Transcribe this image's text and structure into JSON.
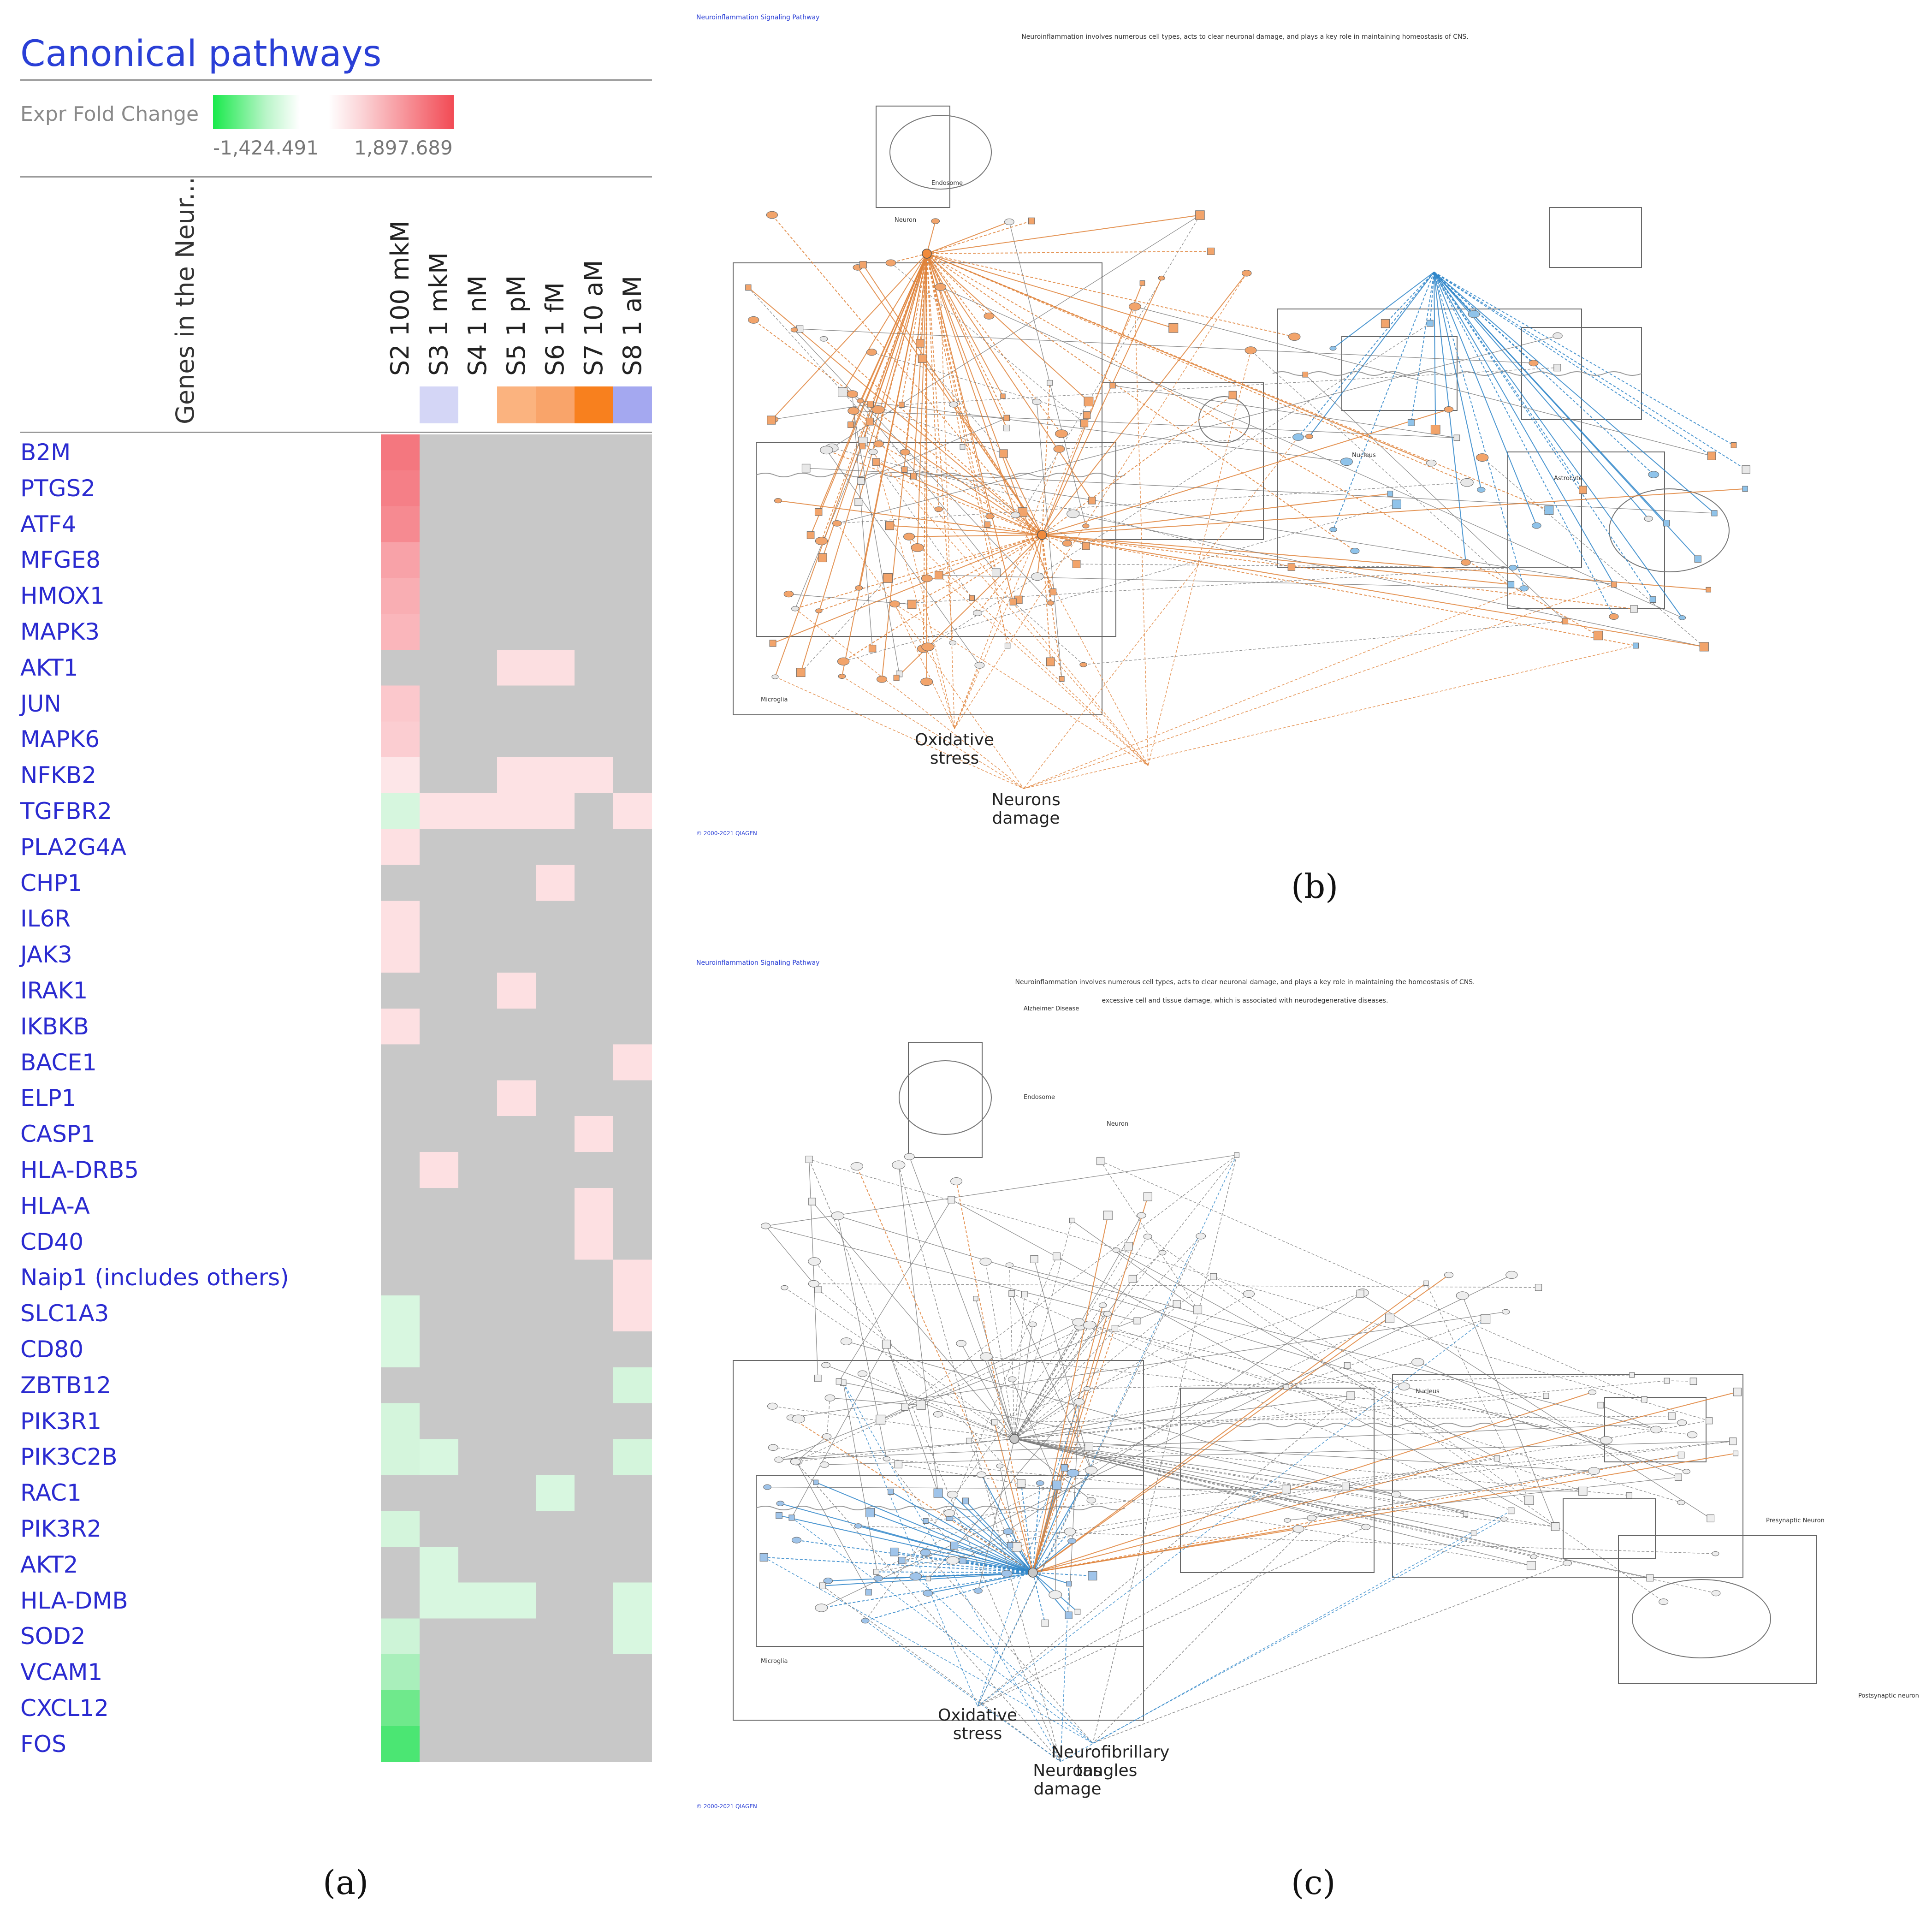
{
  "figure": {
    "labels": {
      "a": "(a)",
      "b": "(b)",
      "c": "(c)"
    }
  },
  "heatmap": {
    "title": "Canonical pathways",
    "legend_label": "Expr Fold Change",
    "legend_min": "-1,424.491",
    "legend_max": "1,897.689",
    "genes_header": "Genes in the Neur...",
    "colors": {
      "gray": "#c8c8c8",
      "header_blank": "#ffffff"
    }
  },
  "chart_data": {
    "type": "heatmap",
    "title": "Canonical pathways",
    "legend": {
      "label": "Expr Fold Change",
      "min": -1424.491,
      "max": 1897.689
    },
    "columns": [
      "S2 100 mkM",
      "S3 1 mkM",
      "S4 1 nM",
      "S5 1 pM",
      "S6 1 fM",
      "S7 10 aM",
      "S8 1 aM"
    ],
    "column_header_colors": [
      "#ffffff",
      "#d4d6f6",
      "#ffffff",
      "#fbb37f",
      "#f9a46a",
      "#f8801e",
      "#a4a8f0"
    ],
    "row_header_title": "Genes in the Neur...",
    "rows": [
      "B2M",
      "PTGS2",
      "ATF4",
      "MFGE8",
      "HMOX1",
      "MAPK3",
      "AKT1",
      "JUN",
      "MAPK6",
      "NFKB2",
      "TGFBR2",
      "PLA2G4A",
      "CHP1",
      "IL6R",
      "JAK3",
      "IRAK1",
      "IKBKB",
      "BACE1",
      "ELP1",
      "CASP1",
      "HLA-DRB5",
      "HLA-A",
      "CD40",
      "Naip1 (includes others)",
      "SLC1A3",
      "CD80",
      "ZBTB12",
      "PIK3R1",
      "PIK3C2B",
      "RAC1",
      "PIK3R2",
      "AKT2",
      "HLA-DMB",
      "SOD2",
      "VCAM1",
      "CXCL12",
      "FOS"
    ],
    "cell_colors": [
      [
        "#f4777f",
        "#c8c8c8",
        "#c8c8c8",
        "#c8c8c8",
        "#c8c8c8",
        "#c8c8c8",
        "#c8c8c8"
      ],
      [
        "#f57f87",
        "#c8c8c8",
        "#c8c8c8",
        "#c8c8c8",
        "#c8c8c8",
        "#c8c8c8",
        "#c8c8c8"
      ],
      [
        "#f68a91",
        "#c8c8c8",
        "#c8c8c8",
        "#c8c8c8",
        "#c8c8c8",
        "#c8c8c8",
        "#c8c8c8"
      ],
      [
        "#f8a2a8",
        "#c8c8c8",
        "#c8c8c8",
        "#c8c8c8",
        "#c8c8c8",
        "#c8c8c8",
        "#c8c8c8"
      ],
      [
        "#f9aeb3",
        "#c8c8c8",
        "#c8c8c8",
        "#c8c8c8",
        "#c8c8c8",
        "#c8c8c8",
        "#c8c8c8"
      ],
      [
        "#fab6bb",
        "#c8c8c8",
        "#c8c8c8",
        "#c8c8c8",
        "#c8c8c8",
        "#c8c8c8",
        "#c8c8c8"
      ],
      [
        "#c8c8c8",
        "#c8c8c8",
        "#c8c8c8",
        "#fcdfe1",
        "#fcdfe1",
        "#c8c8c8",
        "#c8c8c8"
      ],
      [
        "#fbc8cc",
        "#c8c8c8",
        "#c8c8c8",
        "#c8c8c8",
        "#c8c8c8",
        "#c8c8c8",
        "#c8c8c8"
      ],
      [
        "#fbcdd1",
        "#c8c8c8",
        "#c8c8c8",
        "#c8c8c8",
        "#c8c8c8",
        "#c8c8c8",
        "#c8c8c8"
      ],
      [
        "#fde6e8",
        "#c8c8c8",
        "#c8c8c8",
        "#fde2e4",
        "#fde2e4",
        "#fde2e4",
        "#c8c8c8"
      ],
      [
        "#d6f6de",
        "#fde2e4",
        "#fde2e4",
        "#fde2e4",
        "#fde2e4",
        "#c8c8c8",
        "#fde2e4"
      ],
      [
        "#fde0e2",
        "#c8c8c8",
        "#c8c8c8",
        "#c8c8c8",
        "#c8c8c8",
        "#c8c8c8",
        "#c8c8c8"
      ],
      [
        "#c8c8c8",
        "#c8c8c8",
        "#c8c8c8",
        "#c8c8c8",
        "#fde0e2",
        "#c8c8c8",
        "#c8c8c8"
      ],
      [
        "#fde0e2",
        "#c8c8c8",
        "#c8c8c8",
        "#c8c8c8",
        "#c8c8c8",
        "#c8c8c8",
        "#c8c8c8"
      ],
      [
        "#fde0e2",
        "#c8c8c8",
        "#c8c8c8",
        "#c8c8c8",
        "#c8c8c8",
        "#c8c8c8",
        "#c8c8c8"
      ],
      [
        "#c8c8c8",
        "#c8c8c8",
        "#c8c8c8",
        "#fde0e2",
        "#c8c8c8",
        "#c8c8c8",
        "#c8c8c8"
      ],
      [
        "#fde0e2",
        "#c8c8c8",
        "#c8c8c8",
        "#c8c8c8",
        "#c8c8c8",
        "#c8c8c8",
        "#c8c8c8"
      ],
      [
        "#c8c8c8",
        "#c8c8c8",
        "#c8c8c8",
        "#c8c8c8",
        "#c8c8c8",
        "#c8c8c8",
        "#fde0e2"
      ],
      [
        "#c8c8c8",
        "#c8c8c8",
        "#c8c8c8",
        "#fde0e2",
        "#c8c8c8",
        "#c8c8c8",
        "#c8c8c8"
      ],
      [
        "#c8c8c8",
        "#c8c8c8",
        "#c8c8c8",
        "#c8c8c8",
        "#c8c8c8",
        "#fde0e2",
        "#c8c8c8"
      ],
      [
        "#c8c8c8",
        "#fde0e2",
        "#c8c8c8",
        "#c8c8c8",
        "#c8c8c8",
        "#c8c8c8",
        "#c8c8c8"
      ],
      [
        "#c8c8c8",
        "#c8c8c8",
        "#c8c8c8",
        "#c8c8c8",
        "#c8c8c8",
        "#fde0e2",
        "#c8c8c8"
      ],
      [
        "#c8c8c8",
        "#c8c8c8",
        "#c8c8c8",
        "#c8c8c8",
        "#c8c8c8",
        "#fde0e2",
        "#c8c8c8"
      ],
      [
        "#c8c8c8",
        "#c8c8c8",
        "#c8c8c8",
        "#c8c8c8",
        "#c8c8c8",
        "#c8c8c8",
        "#fde0e2"
      ],
      [
        "#d8f7e0",
        "#c8c8c8",
        "#c8c8c8",
        "#c8c8c8",
        "#c8c8c8",
        "#c8c8c8",
        "#fde0e2"
      ],
      [
        "#d8f7e0",
        "#c8c8c8",
        "#c8c8c8",
        "#c8c8c8",
        "#c8c8c8",
        "#c8c8c8",
        "#c8c8c8"
      ],
      [
        "#c8c8c8",
        "#c8c8c8",
        "#c8c8c8",
        "#c8c8c8",
        "#c8c8c8",
        "#c8c8c8",
        "#d4f5dc"
      ],
      [
        "#d4f5dc",
        "#c8c8c8",
        "#c8c8c8",
        "#c8c8c8",
        "#c8c8c8",
        "#c8c8c8",
        "#c8c8c8"
      ],
      [
        "#d4f5dc",
        "#d8f7e0",
        "#c8c8c8",
        "#c8c8c8",
        "#c8c8c8",
        "#c8c8c8",
        "#d4f5dc"
      ],
      [
        "#c8c8c8",
        "#c8c8c8",
        "#c8c8c8",
        "#c8c8c8",
        "#d8f7e0",
        "#c8c8c8",
        "#c8c8c8"
      ],
      [
        "#d4f5dc",
        "#c8c8c8",
        "#c8c8c8",
        "#c8c8c8",
        "#c8c8c8",
        "#c8c8c8",
        "#c8c8c8"
      ],
      [
        "#c8c8c8",
        "#d8f7e0",
        "#c8c8c8",
        "#c8c8c8",
        "#c8c8c8",
        "#c8c8c8",
        "#c8c8c8"
      ],
      [
        "#c8c8c8",
        "#d8f7e0",
        "#d8f7e0",
        "#d8f7e0",
        "#c8c8c8",
        "#c8c8c8",
        "#d8f7e0"
      ],
      [
        "#cdf4d7",
        "#c8c8c8",
        "#c8c8c8",
        "#c8c8c8",
        "#c8c8c8",
        "#c8c8c8",
        "#d8f7e0"
      ],
      [
        "#a9efbb",
        "#c8c8c8",
        "#c8c8c8",
        "#c8c8c8",
        "#c8c8c8",
        "#c8c8c8",
        "#c8c8c8"
      ],
      [
        "#6fe98c",
        "#c8c8c8",
        "#c8c8c8",
        "#c8c8c8",
        "#c8c8c8",
        "#c8c8c8",
        "#c8c8c8"
      ],
      [
        "#4be673",
        "#c8c8c8",
        "#c8c8c8",
        "#c8c8c8",
        "#c8c8c8",
        "#c8c8c8",
        "#c8c8c8"
      ]
    ]
  },
  "networks": {
    "b": {
      "caption": "Neuroinflammation Signaling Pathway",
      "description": "Neuroinflammation involves numerous cell types, acts to clear neuronal damage, and plays a key role in maintaining homeostasis of CNS.",
      "labels": {
        "oxidative": "Oxidative stress",
        "neurons_damage": "Neurons damage",
        "endosome": "Endosome",
        "microglia": "Microglia",
        "nucleus": "Nucleus",
        "astrocyte": "Astrocyte",
        "neuron": "Neuron"
      },
      "footer": "© 2000-2021 QIAGEN",
      "edge_color": "#e0833a",
      "node_color": "#f2a46b",
      "inhibited_color": "#2f86c9"
    },
    "c": {
      "caption": "Neuroinflammation Signaling Pathway",
      "description": "Neuroinflammation involves numerous cell types, acts to clear neuronal damage, and plays a key role in maintaining the homeostasis of CNS.",
      "description2": "excessive cell and tissue damage, which is associated with neurodegenerative diseases.",
      "labels": {
        "oxidative": "Oxidative stress",
        "tangles": "Neurofibrillary tangles",
        "neurons_damage": "Neurons damage",
        "alzheimer": "Alzheimer Disease",
        "endosome": "Endosome",
        "neuron": "Neuron",
        "microglia": "Microglia",
        "nucleus": "Nucleus",
        "presynaptic": "Presynaptic Neuron",
        "postsynaptic": "Postsynaptic neuron"
      },
      "footer": "© 2000-2021 QIAGEN",
      "edge_color": "#8a8a8a",
      "inhibited_color": "#2f86c9",
      "orange_color": "#e0833a"
    }
  }
}
